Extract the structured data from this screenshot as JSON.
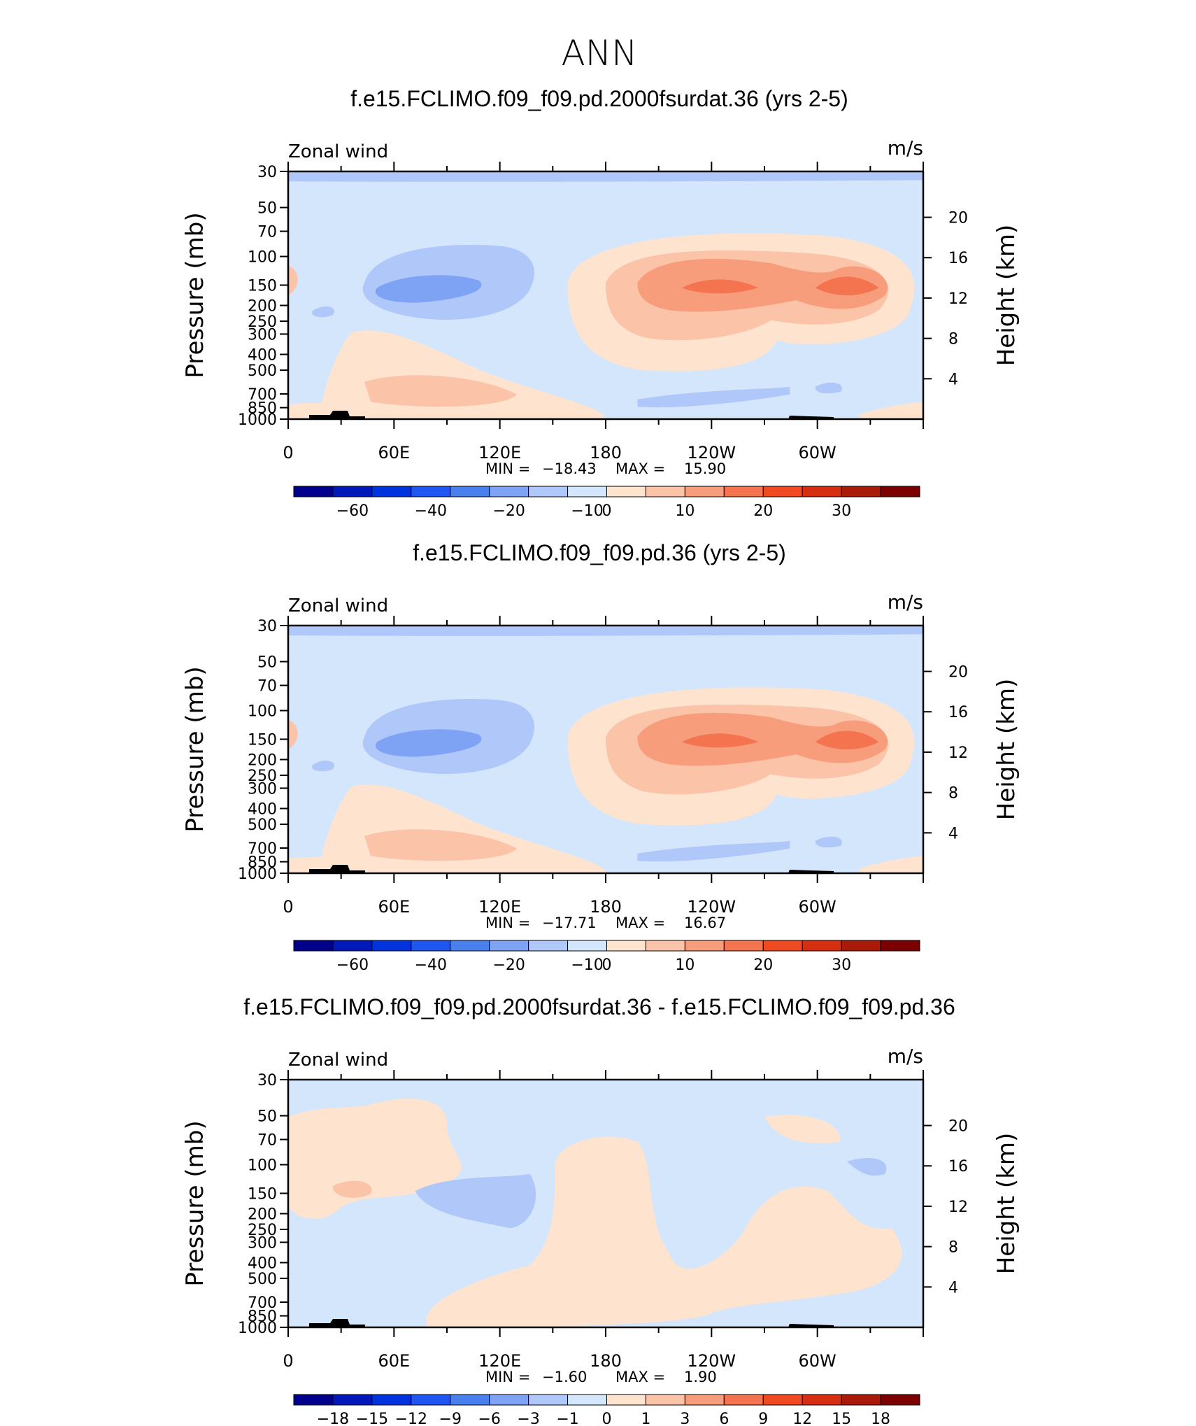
{
  "figure": {
    "title": "ANN"
  },
  "chart_data": [
    {
      "type": "contour",
      "title": "f.e15.FCLIMO.f09_f09.pd.2000fsurdat.36 (yrs 2-5)",
      "left_label": "Zonal wind",
      "units": "m/s",
      "ylabel": "Pressure (mb)",
      "ylabel_right": "Height (km)",
      "pressure_ticks": [
        "30",
        "50",
        "70",
        "100",
        "150",
        "200",
        "250",
        "300",
        "400",
        "500",
        "700",
        "850",
        "1000"
      ],
      "height_ticks": [
        "20",
        "16",
        "12",
        "8",
        "4"
      ],
      "x_ticks": [
        "0",
        "60E",
        "120E",
        "180",
        "120W",
        "60W"
      ],
      "stats": {
        "min_label": "MIN =",
        "min": "−18.43",
        "max_label": "MAX =",
        "max": "15.90"
      },
      "colorbar_labels": [
        "−60",
        "−40",
        "−20",
        "−10",
        "0",
        "10",
        "20",
        "30"
      ]
    },
    {
      "type": "contour",
      "title": "f.e15.FCLIMO.f09_f09.pd.36 (yrs 2-5)",
      "left_label": "Zonal wind",
      "units": "m/s",
      "ylabel": "Pressure (mb)",
      "ylabel_right": "Height (km)",
      "pressure_ticks": [
        "30",
        "50",
        "70",
        "100",
        "150",
        "200",
        "250",
        "300",
        "400",
        "500",
        "700",
        "850",
        "1000"
      ],
      "height_ticks": [
        "20",
        "16",
        "12",
        "8",
        "4"
      ],
      "x_ticks": [
        "0",
        "60E",
        "120E",
        "180",
        "120W",
        "60W"
      ],
      "stats": {
        "min_label": "MIN =",
        "min": "−17.71",
        "max_label": "MAX =",
        "max": "16.67"
      },
      "colorbar_labels": [
        "−60",
        "−40",
        "−20",
        "−10",
        "0",
        "10",
        "20",
        "30"
      ]
    },
    {
      "type": "contour",
      "title": "f.e15.FCLIMO.f09_f09.pd.2000fsurdat.36 - f.e15.FCLIMO.f09_f09.pd.36",
      "left_label": "Zonal wind",
      "units": "m/s",
      "ylabel": "Pressure (mb)",
      "ylabel_right": "Height (km)",
      "pressure_ticks": [
        "30",
        "50",
        "70",
        "100",
        "150",
        "200",
        "250",
        "300",
        "400",
        "500",
        "700",
        "850",
        "1000"
      ],
      "height_ticks": [
        "20",
        "16",
        "12",
        "8",
        "4"
      ],
      "x_ticks": [
        "0",
        "60E",
        "120E",
        "180",
        "120W",
        "60W"
      ],
      "stats": {
        "min_label": "MIN =",
        "min": "−1.60",
        "max_label": "MAX =",
        "max": "1.90"
      },
      "colorbar_labels": [
        "−18",
        "−15",
        "−12",
        "−9",
        "−6",
        "−3",
        "−1",
        "0",
        "1",
        "3",
        "6",
        "9",
        "12",
        "15",
        "18"
      ]
    }
  ],
  "colors": {
    "bg_field": "#d4e6fb",
    "colorbar": [
      "#00008b",
      "#0019b8",
      "#0033dd",
      "#1f55f0",
      "#4a7fee",
      "#7ea3f5",
      "#afc7f9",
      "#d4e6fb",
      "#fee3cf",
      "#fbc3a7",
      "#f79d7c",
      "#f3744f",
      "#ef4a22",
      "#d62e10",
      "#aa1a08",
      "#7d0000"
    ]
  }
}
